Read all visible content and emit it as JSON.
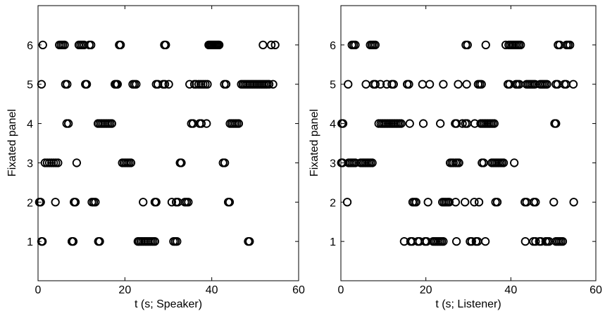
{
  "chart_data": [
    {
      "type": "scatter",
      "title": "",
      "xlabel": "t (s; Speaker)",
      "ylabel": "Fixated panel",
      "xlim": [
        0,
        60
      ],
      "ylim": [
        0,
        7
      ],
      "xticks": [
        0,
        20,
        40,
        60
      ],
      "yticks": [
        1,
        2,
        3,
        4,
        5,
        6
      ],
      "marker": "open-circle",
      "color": "#000000",
      "grid": false,
      "points": {
        "1": [
          0.8,
          1.0,
          7.8,
          8.1,
          13.9,
          14.2,
          23.0,
          23.3,
          23.7,
          24.1,
          24.5,
          24.9,
          25.3,
          25.7,
          26.1,
          26.5,
          26.9,
          31.2,
          31.6,
          32.0,
          48.4,
          48.7
        ],
        "2": [
          0.3,
          0.6,
          4.0,
          8.3,
          8.6,
          12.4,
          12.8,
          13.2,
          24.2,
          26.9,
          27.2,
          30.8,
          31.8,
          32.2,
          33.8,
          34.2,
          34.6,
          43.8,
          44.1
        ],
        "3": [
          1.6,
          2.1,
          2.6,
          3.1,
          3.6,
          4.1,
          4.6,
          8.9,
          19.4,
          19.8,
          20.2,
          20.6,
          21.0,
          21.4,
          32.7,
          33.0,
          42.6,
          43.0
        ],
        "4": [
          6.6,
          7.0,
          13.8,
          14.2,
          14.6,
          15.0,
          15.4,
          15.8,
          16.2,
          16.6,
          17.0,
          35.3,
          35.7,
          37.2,
          37.6,
          38.8,
          44.2,
          44.6,
          45.0,
          45.4,
          45.8,
          46.2
        ],
        "5": [
          0.8,
          6.3,
          6.7,
          10.9,
          11.2,
          17.7,
          18.0,
          18.3,
          21.8,
          22.2,
          22.6,
          27.2,
          27.6,
          28.8,
          29.2,
          30.1,
          34.9,
          36.0,
          36.4,
          37.0,
          37.5,
          38.0,
          38.5,
          39.0,
          42.9,
          43.3,
          46.8,
          47.2,
          47.6,
          48.0,
          48.4,
          48.8,
          49.2,
          49.6,
          50.0,
          50.4,
          50.8,
          51.2,
          51.6,
          52.0,
          52.4,
          52.8,
          53.2,
          54.1
        ],
        "6": [
          1.1,
          4.9,
          5.3,
          5.7,
          6.1,
          9.4,
          9.8,
          10.2,
          10.6,
          11.8,
          12.2,
          18.7,
          19.0,
          29.1,
          29.4,
          39.3,
          39.6,
          39.9,
          40.2,
          40.5,
          40.8,
          41.1,
          41.4,
          41.7,
          51.8,
          53.7,
          54.6
        ]
      }
    },
    {
      "type": "scatter",
      "title": "",
      "xlabel": "t (s; Listener)",
      "ylabel": "Fixated panel",
      "xlim": [
        0,
        60
      ],
      "ylim": [
        0,
        7
      ],
      "xticks": [
        0,
        20,
        40,
        60
      ],
      "yticks": [
        1,
        2,
        3,
        4,
        5,
        6
      ],
      "marker": "open-circle",
      "color": "#000000",
      "grid": false,
      "points": {
        "1": [
          14.9,
          16.4,
          16.8,
          18.1,
          18.5,
          19.8,
          20.2,
          21.7,
          22.1,
          22.5,
          22.9,
          23.3,
          23.7,
          24.1,
          27.2,
          30.4,
          30.8,
          31.8,
          32.2,
          34.0,
          43.4,
          45.3,
          45.8,
          46.7,
          47.1,
          48.2,
          48.6,
          49.0,
          50.6,
          51.0,
          51.4,
          51.8,
          52.2
        ],
        "2": [
          1.5,
          16.9,
          17.3,
          17.7,
          20.5,
          23.9,
          24.3,
          24.7,
          25.1,
          25.5,
          27.0,
          29.2,
          31.4,
          32.5,
          36.4,
          36.8,
          43.3,
          43.7,
          45.4,
          45.8,
          50.1,
          54.8
        ],
        "3": [
          0.1,
          0.4,
          1.8,
          2.2,
          2.6,
          3.0,
          3.4,
          4.6,
          5.0,
          5.4,
          5.8,
          6.2,
          6.6,
          7.0,
          7.4,
          25.7,
          26.1,
          26.5,
          27.0,
          27.4,
          27.8,
          33.2,
          33.6,
          35.5,
          35.9,
          36.3,
          36.7,
          37.1,
          37.5,
          37.9,
          38.3,
          40.8
        ],
        "4": [
          0.2,
          0.5,
          8.9,
          9.4,
          9.8,
          10.2,
          10.6,
          11.0,
          11.4,
          11.8,
          12.2,
          12.6,
          13.0,
          13.4,
          13.8,
          14.2,
          16.2,
          19.4,
          23.4,
          26.9,
          27.2,
          28.6,
          29.3,
          29.7,
          31.5,
          32.9,
          33.3,
          33.7,
          34.1,
          34.5,
          34.9,
          35.3,
          35.7,
          36.1,
          50.3,
          50.6
        ],
        "5": [
          1.7,
          5.9,
          7.7,
          8.1,
          9.3,
          10.8,
          12.0,
          12.4,
          15.6,
          16.0,
          19.2,
          20.9,
          24.1,
          27.6,
          29.6,
          32.3,
          32.7,
          33.1,
          39.3,
          39.7,
          41.2,
          41.6,
          42.0,
          43.7,
          44.1,
          44.5,
          44.9,
          45.3,
          45.7,
          46.9,
          47.3,
          47.7,
          48.1,
          48.5,
          50.6,
          51.0,
          52.6,
          53.0,
          54.7
        ],
        "6": [
          2.6,
          3.0,
          3.4,
          6.9,
          7.3,
          7.7,
          8.1,
          29.4,
          29.8,
          34.1,
          38.8,
          39.5,
          39.9,
          40.3,
          40.7,
          41.1,
          41.5,
          41.9,
          42.3,
          51.1,
          51.5,
          53.1,
          53.5,
          53.9
        ]
      }
    }
  ]
}
